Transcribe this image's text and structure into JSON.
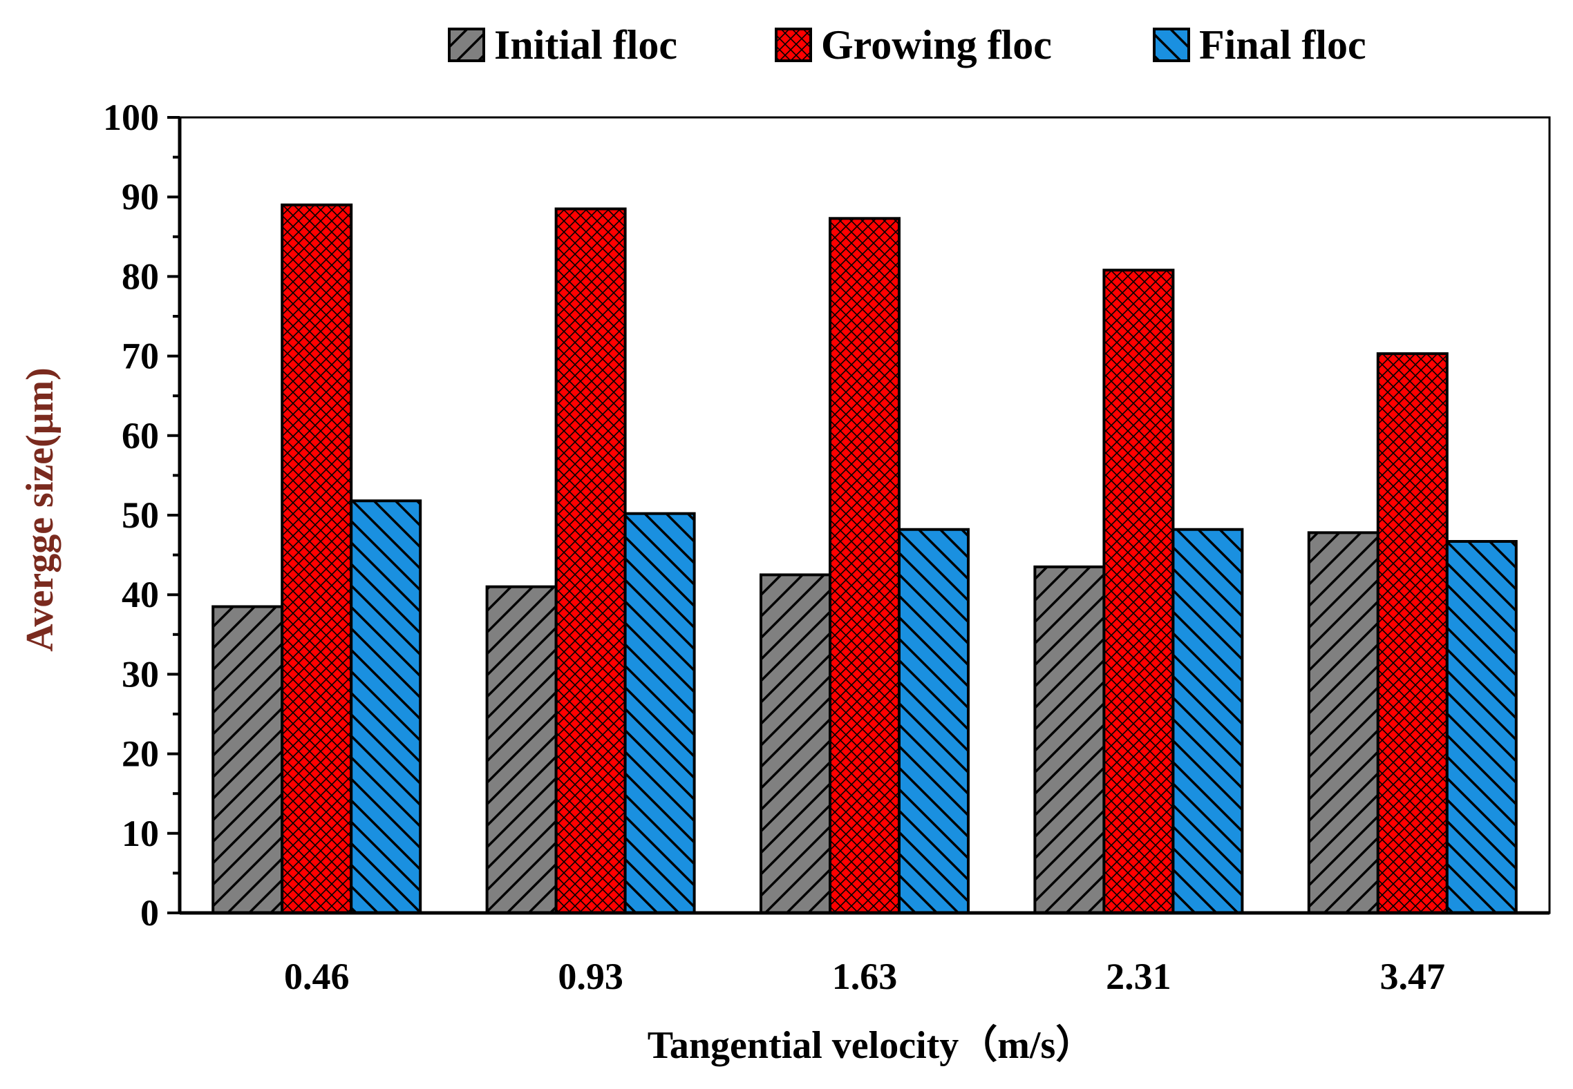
{
  "chart_data": {
    "type": "bar",
    "title": "",
    "xlabel": "Tangential velocity（m/s）",
    "ylabel": "Avergge size(μm)",
    "categories": [
      "0.46",
      "0.93",
      "1.63",
      "2.31",
      "3.47"
    ],
    "series": [
      {
        "name": "Initial floc",
        "values": [
          38.5,
          41.0,
          42.5,
          43.5,
          47.8
        ]
      },
      {
        "name": "Growing floc",
        "values": [
          89.0,
          88.5,
          87.3,
          80.8,
          70.3
        ]
      },
      {
        "name": "Final floc",
        "values": [
          51.8,
          50.2,
          48.2,
          48.2,
          46.7
        ]
      }
    ],
    "ylim": [
      0,
      100
    ],
    "yticks": [
      0,
      10,
      20,
      30,
      40,
      50,
      60,
      70,
      80,
      90,
      100
    ],
    "legend_position": "top",
    "grid": false
  },
  "colors": {
    "initial": "#808080",
    "growing": "#ff0000",
    "final": "#1a90e0",
    "ylabel": "#7a2a1e",
    "axis": "#000000"
  }
}
